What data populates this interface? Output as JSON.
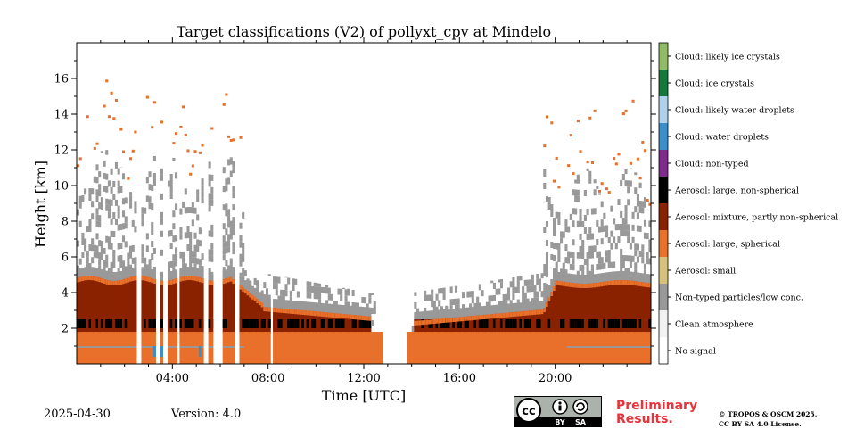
{
  "chart_data": {
    "type": "heatmap",
    "title": "Target classifications (V2) of pollyxt_cpv at Mindelo",
    "xlabel": "Time [UTC]",
    "ylabel": "Height [km]",
    "xlim_hours": [
      0,
      24
    ],
    "ylim_km": [
      0,
      18
    ],
    "x_ticks": [
      "04:00",
      "08:00",
      "12:00",
      "16:00",
      "20:00"
    ],
    "y_ticks": [
      "2",
      "4",
      "6",
      "8",
      "10",
      "12",
      "14",
      "16"
    ],
    "legend": [
      {
        "label": "Cloud: likely ice crystals",
        "color": "#8fbc65"
      },
      {
        "label": "Cloud: ice crystals",
        "color": "#137a3a"
      },
      {
        "label": "Cloud: likely water droplets",
        "color": "#aed2ec"
      },
      {
        "label": "Cloud: water droplets",
        "color": "#3a8fcb"
      },
      {
        "label": "Cloud: non-typed",
        "color": "#7f2a8c"
      },
      {
        "label": "Aerosol: large, non-spherical",
        "color": "#000000"
      },
      {
        "label": "Aerosol: mixture, partly non-spherical",
        "color": "#8a2200"
      },
      {
        "label": "Aerosol: large, spherical",
        "color": "#e8702a"
      },
      {
        "label": "Aerosol: small",
        "color": "#d8c17a"
      },
      {
        "label": "Non-typed particles/low conc.",
        "color": "#999999"
      },
      {
        "label": "Clean atmosphere",
        "color": "#f2f2f2"
      },
      {
        "label": "No signal",
        "color": "#ffffff"
      }
    ],
    "layers_approx": [
      {
        "class": "Aerosol: large, spherical",
        "hours": [
          0,
          24
        ],
        "top_km": 1.8
      },
      {
        "class": "Aerosol: mixture, partly non-spherical",
        "hours": [
          0,
          7
        ],
        "top_km": 4.7
      },
      {
        "class": "Aerosol: mixture, partly non-spherical",
        "hours": [
          7,
          12.5
        ],
        "top_km": 3.2
      },
      {
        "class": "Aerosol: mixture, partly non-spherical",
        "hours": [
          14,
          20
        ],
        "top_km": 3.0
      },
      {
        "class": "Aerosol: mixture, partly non-spherical",
        "hours": [
          20,
          24
        ],
        "top_km": 4.6
      },
      {
        "class": "No signal",
        "hours": [
          12.8,
          13.8
        ],
        "top_km": 18
      }
    ]
  },
  "footer": {
    "date": "2025-04-30",
    "version": "Version: 4.0",
    "preliminary": "Preliminary Results.",
    "license_line1": "© TROPOS & OSCM 2025.",
    "license_line2": "CC BY SA 4.0 License.",
    "cc_text": "cc",
    "cc_by": "BY",
    "cc_sa": "SA"
  }
}
